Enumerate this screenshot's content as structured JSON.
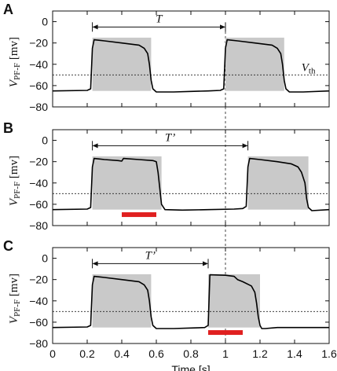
{
  "chart_data": {
    "type": "line",
    "xlabel": "Time [s]",
    "xlim": [
      0,
      1.6
    ],
    "x_ticks": [
      "0",
      "0.2",
      "0.4",
      "0.6",
      "0.8",
      "1",
      "1.2",
      "1.4",
      "1.6"
    ],
    "y_ticks": [
      "0",
      "-20",
      "-40",
      "-60",
      "-80"
    ],
    "ylim": [
      -80,
      10
    ],
    "threshold": -50,
    "threshold_label": "V",
    "threshold_label_sub": "th",
    "guide_x": 1.0,
    "ylabel_main": "V",
    "ylabel_sub": "PF-F",
    "ylabel_unit": " [mv]",
    "trace_color": "#000000",
    "shade_color": "#c9c9c9",
    "stim_color": "#e02020",
    "panels": [
      {
        "label": "A",
        "period_label": "T",
        "period": [
          0.23,
          1.0
        ],
        "shades": [
          [
            0.23,
            0.57
          ],
          [
            1.0,
            1.34
          ]
        ],
        "stimulus": null,
        "trace": {
          "x": [
            0,
            0.2,
            0.22,
            0.23,
            0.24,
            0.3,
            0.4,
            0.5,
            0.53,
            0.55,
            0.56,
            0.57,
            0.58,
            0.6,
            0.7,
            0.8,
            0.9,
            0.97,
            0.99,
            1.0,
            1.01,
            1.07,
            1.17,
            1.27,
            1.3,
            1.32,
            1.33,
            1.34,
            1.35,
            1.37,
            1.45,
            1.6
          ],
          "y": [
            -65,
            -64.5,
            -63,
            -25,
            -17,
            -18,
            -20,
            -22,
            -25,
            -30,
            -40,
            -55,
            -63,
            -66,
            -66,
            -65.5,
            -65,
            -64.5,
            -63,
            -25,
            -17,
            -18,
            -20,
            -22,
            -25,
            -30,
            -40,
            -55,
            -63,
            -66,
            -66,
            -65
          ]
        }
      },
      {
        "label": "B",
        "period_label": "T’",
        "period": [
          0.23,
          1.13
        ],
        "shades": [
          [
            0.23,
            0.63
          ],
          [
            1.13,
            1.48
          ]
        ],
        "stimulus": [
          0.4,
          0.6
        ],
        "trace": {
          "x": [
            0,
            0.2,
            0.22,
            0.23,
            0.24,
            0.3,
            0.38,
            0.4,
            0.41,
            0.5,
            0.58,
            0.6,
            0.61,
            0.62,
            0.63,
            0.65,
            0.75,
            0.9,
            1.05,
            1.1,
            1.12,
            1.13,
            1.14,
            1.2,
            1.3,
            1.38,
            1.42,
            1.44,
            1.46,
            1.47,
            1.48,
            1.5,
            1.6
          ],
          "y": [
            -65,
            -64.5,
            -63,
            -25,
            -17,
            -18,
            -19,
            -19.5,
            -17,
            -18,
            -19,
            -20,
            -30,
            -45,
            -60,
            -65,
            -65.5,
            -65,
            -64.5,
            -64,
            -62,
            -25,
            -17,
            -18,
            -20,
            -22,
            -25,
            -30,
            -40,
            -55,
            -63,
            -66,
            -65
          ]
        }
      },
      {
        "label": "C",
        "period_label": "T’",
        "period": [
          0.23,
          0.9
        ],
        "shades": [
          [
            0.23,
            0.57
          ],
          [
            0.9,
            1.2
          ]
        ],
        "stimulus": [
          0.9,
          1.1
        ],
        "trace": {
          "x": [
            0,
            0.2,
            0.22,
            0.23,
            0.24,
            0.3,
            0.4,
            0.5,
            0.53,
            0.55,
            0.56,
            0.57,
            0.58,
            0.6,
            0.7,
            0.8,
            0.88,
            0.9,
            0.91,
            1.0,
            1.05,
            1.07,
            1.1,
            1.15,
            1.17,
            1.18,
            1.19,
            1.2,
            1.21,
            1.23,
            1.3,
            1.6
          ],
          "y": [
            -65,
            -64.5,
            -63,
            -25,
            -17,
            -18,
            -20,
            -22,
            -25,
            -30,
            -40,
            -55,
            -63,
            -66,
            -66,
            -65.5,
            -65,
            -63,
            -15.5,
            -16,
            -17,
            -20,
            -22,
            -26,
            -32,
            -42,
            -55,
            -63,
            -66,
            -66,
            -65,
            -65
          ]
        }
      }
    ]
  }
}
